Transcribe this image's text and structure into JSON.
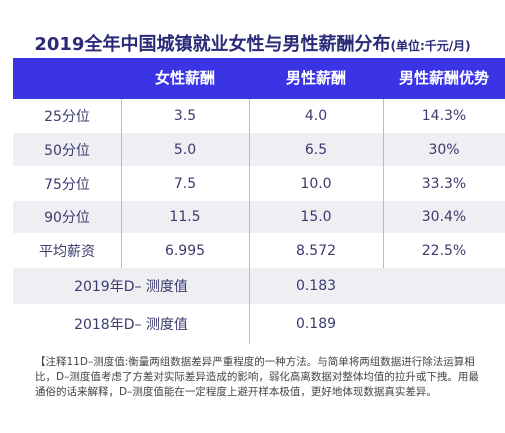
{
  "title": "2019全年中国城镇就业女性与男性薪酬分布",
  "title_unit": "(单位:千元/月)",
  "colors": {
    "header_bg": "#3a34e4",
    "header_text": "#ffffff",
    "body_text": "#3b3b6e",
    "row_shade": "#eeeef3"
  },
  "chart_data": {
    "type": "table",
    "title": "2019全年中国城镇就业女性与男性薪酬分布",
    "unit": "(单位:千元/月)",
    "columns": [
      "",
      "女性薪酬",
      "男性薪酬",
      "男性薪酬优势"
    ],
    "rows": [
      {
        "label": "25分位",
        "female": "3.5",
        "male": "4.0",
        "adv": "14.3%"
      },
      {
        "label": "50分位",
        "female": "5.0",
        "male": "6.5",
        "adv": "30%"
      },
      {
        "label": "75分位",
        "female": "7.5",
        "male": "10.0",
        "adv": "33.3%"
      },
      {
        "label": "90分位",
        "female": "11.5",
        "male": "15.0",
        "adv": "30.4%"
      },
      {
        "label": "平均薪资",
        "female": "6.995",
        "male": "8.572",
        "adv": "22.5%"
      }
    ],
    "d_rows": [
      {
        "label": "2019年D– 测度值",
        "value": "0.183"
      },
      {
        "label": "2018年D– 测度值",
        "value": "0.189"
      }
    ]
  },
  "note": "【注释11D–测度值:衡量两组数据差异严重程度的一种方法。与简单将两组数据进行除法运算相比，D–测度值考虑了方差对实际差异造成的影响，弱化高离数据对整体均值的拉升或下拽。用最通俗的话来解释，D–测度值能在一定程度上避开样本极值，更好地体现数据真实差异。"
}
